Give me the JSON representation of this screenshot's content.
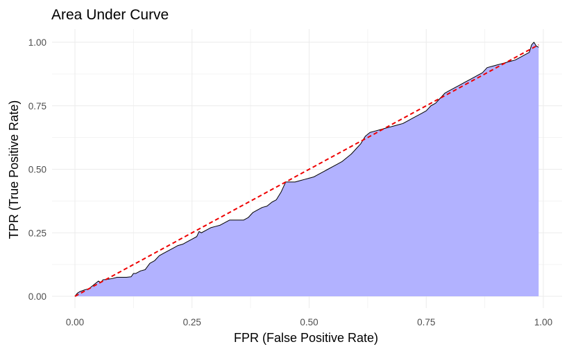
{
  "chart_data": {
    "type": "area",
    "title": "Area Under Curve",
    "xlabel": "FPR (False Positive Rate)",
    "ylabel": "TPR (True Positive Rate)",
    "xlim": [
      0,
      1
    ],
    "ylim": [
      0,
      1
    ],
    "xticks": [
      0,
      0.25,
      0.5,
      0.75,
      1
    ],
    "xtick_labels": [
      "0.00",
      "0.25",
      "0.50",
      "0.75",
      "1.00"
    ],
    "yticks": [
      0,
      0.25,
      0.5,
      0.75,
      1
    ],
    "ytick_labels": [
      "0.00",
      "0.25",
      "0.50",
      "0.75",
      "1.00"
    ],
    "grid": true,
    "legend": "none",
    "colors": {
      "fill": "#b2b2ff",
      "line": "#000000",
      "diagonal": "#ee0000",
      "grid": "#ebebeb"
    },
    "series": [
      {
        "values": [
          [
            0.0,
            0.0
          ],
          [
            0.005,
            0.012
          ],
          [
            0.01,
            0.018
          ],
          [
            0.02,
            0.025
          ],
          [
            0.03,
            0.03
          ],
          [
            0.04,
            0.045
          ],
          [
            0.05,
            0.06
          ],
          [
            0.055,
            0.055
          ],
          [
            0.06,
            0.065
          ],
          [
            0.07,
            0.067
          ],
          [
            0.08,
            0.07
          ],
          [
            0.09,
            0.075
          ],
          [
            0.1,
            0.075
          ],
          [
            0.11,
            0.075
          ],
          [
            0.12,
            0.077
          ],
          [
            0.125,
            0.09
          ],
          [
            0.13,
            0.09
          ],
          [
            0.14,
            0.1
          ],
          [
            0.15,
            0.105
          ],
          [
            0.16,
            0.13
          ],
          [
            0.17,
            0.14
          ],
          [
            0.18,
            0.16
          ],
          [
            0.19,
            0.17
          ],
          [
            0.2,
            0.18
          ],
          [
            0.21,
            0.19
          ],
          [
            0.22,
            0.2
          ],
          [
            0.23,
            0.205
          ],
          [
            0.24,
            0.215
          ],
          [
            0.25,
            0.225
          ],
          [
            0.26,
            0.235
          ],
          [
            0.265,
            0.255
          ],
          [
            0.27,
            0.25
          ],
          [
            0.28,
            0.26
          ],
          [
            0.29,
            0.27
          ],
          [
            0.3,
            0.275
          ],
          [
            0.31,
            0.28
          ],
          [
            0.32,
            0.29
          ],
          [
            0.33,
            0.3
          ],
          [
            0.34,
            0.3
          ],
          [
            0.35,
            0.3
          ],
          [
            0.36,
            0.3
          ],
          [
            0.37,
            0.31
          ],
          [
            0.38,
            0.33
          ],
          [
            0.39,
            0.34
          ],
          [
            0.4,
            0.35
          ],
          [
            0.41,
            0.355
          ],
          [
            0.42,
            0.37
          ],
          [
            0.43,
            0.38
          ],
          [
            0.44,
            0.41
          ],
          [
            0.45,
            0.45
          ],
          [
            0.46,
            0.45
          ],
          [
            0.47,
            0.45
          ],
          [
            0.48,
            0.455
          ],
          [
            0.49,
            0.46
          ],
          [
            0.5,
            0.465
          ],
          [
            0.51,
            0.47
          ],
          [
            0.52,
            0.48
          ],
          [
            0.53,
            0.49
          ],
          [
            0.54,
            0.5
          ],
          [
            0.55,
            0.51
          ],
          [
            0.56,
            0.52
          ],
          [
            0.57,
            0.53
          ],
          [
            0.58,
            0.545
          ],
          [
            0.59,
            0.56
          ],
          [
            0.6,
            0.58
          ],
          [
            0.61,
            0.6
          ],
          [
            0.62,
            0.63
          ],
          [
            0.63,
            0.645
          ],
          [
            0.64,
            0.65
          ],
          [
            0.65,
            0.655
          ],
          [
            0.66,
            0.66
          ],
          [
            0.67,
            0.665
          ],
          [
            0.68,
            0.67
          ],
          [
            0.69,
            0.675
          ],
          [
            0.7,
            0.68
          ],
          [
            0.71,
            0.69
          ],
          [
            0.72,
            0.7
          ],
          [
            0.73,
            0.71
          ],
          [
            0.74,
            0.72
          ],
          [
            0.75,
            0.73
          ],
          [
            0.76,
            0.75
          ],
          [
            0.77,
            0.76
          ],
          [
            0.78,
            0.78
          ],
          [
            0.79,
            0.8
          ],
          [
            0.8,
            0.81
          ],
          [
            0.81,
            0.82
          ],
          [
            0.82,
            0.83
          ],
          [
            0.83,
            0.84
          ],
          [
            0.84,
            0.85
          ],
          [
            0.85,
            0.86
          ],
          [
            0.86,
            0.87
          ],
          [
            0.87,
            0.88
          ],
          [
            0.88,
            0.9
          ],
          [
            0.89,
            0.905
          ],
          [
            0.9,
            0.91
          ],
          [
            0.91,
            0.915
          ],
          [
            0.92,
            0.92
          ],
          [
            0.93,
            0.925
          ],
          [
            0.94,
            0.93
          ],
          [
            0.95,
            0.94
          ],
          [
            0.96,
            0.95
          ],
          [
            0.97,
            0.96
          ],
          [
            0.975,
            0.99
          ],
          [
            0.98,
            1.0
          ],
          [
            0.985,
            0.985
          ],
          [
            0.99,
            0.98
          ]
        ]
      },
      {
        "values": [
          [
            0.0,
            0.0
          ],
          [
            0.99,
            0.99
          ]
        ]
      }
    ]
  }
}
